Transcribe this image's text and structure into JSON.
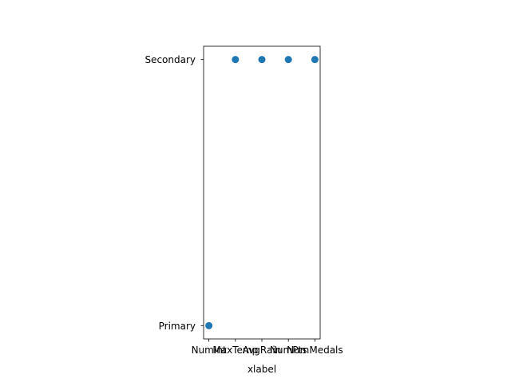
{
  "chart_data": {
    "type": "scatter",
    "title": "",
    "xlabel": "xlabel",
    "ylabel": "",
    "categories": [
      "NumInt",
      "MaxTemp",
      "AvgRain",
      "NumPts",
      "NumMedals"
    ],
    "y_categories": [
      "Primary",
      "Secondary"
    ],
    "points": [
      {
        "x": "NumInt",
        "y": "Primary"
      },
      {
        "x": "MaxTemp",
        "y": "Secondary"
      },
      {
        "x": "AvgRain",
        "y": "Secondary"
      },
      {
        "x": "NumPts",
        "y": "Secondary"
      },
      {
        "x": "NumMedals",
        "y": "Secondary"
      }
    ],
    "marker_color": "#1f77b4",
    "grid": false,
    "legend": "none"
  }
}
